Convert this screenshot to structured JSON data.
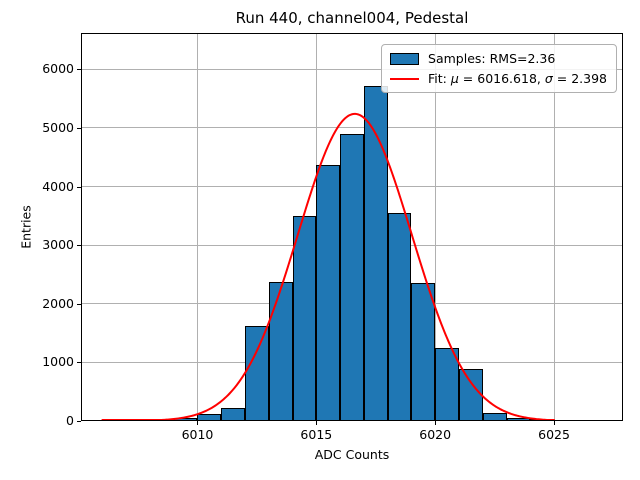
{
  "window": {
    "background": "#ffffff"
  },
  "chart_data": {
    "type": "bar",
    "title": "Run 440, channel004, Pedestal",
    "xlabel": "ADC Counts",
    "ylabel": "Entries",
    "xlim": [
      6005.1,
      6027.9
    ],
    "ylim": [
      0,
      6620
    ],
    "xticks": [
      6010,
      6015,
      6020,
      6025
    ],
    "yticks": [
      0,
      1000,
      2000,
      3000,
      4000,
      5000,
      6000
    ],
    "grid": true,
    "bin_width": 1,
    "bins": [
      6009,
      6010,
      6011,
      6012,
      6013,
      6014,
      6015,
      6016,
      6017,
      6018,
      6019,
      6020,
      6021,
      6022,
      6023,
      6024
    ],
    "counts": [
      45,
      125,
      220,
      1615,
      2370,
      3505,
      4370,
      4900,
      5715,
      3555,
      2355,
      1250,
      885,
      140,
      50,
      15
    ],
    "histogram_rms": 2.36,
    "fit": {
      "mu": 6016.618,
      "sigma": 2.398,
      "amplitude": 5240,
      "x_start": 6006,
      "x_end": 6025
    },
    "colors": {
      "bar_fill": "#1f77b4",
      "bar_edge": "#000000",
      "fit_line": "#ff0000",
      "grid": "#b0b0b0"
    },
    "legend_position": "upper right"
  },
  "legend": {
    "samples_label": "Samples: RMS=2.36",
    "fit_prefix": "Fit: ",
    "mu_symbol": "μ",
    "mu_text": " = 6016.618, ",
    "sigma_symbol": "σ",
    "sigma_text": " = 2.398"
  }
}
